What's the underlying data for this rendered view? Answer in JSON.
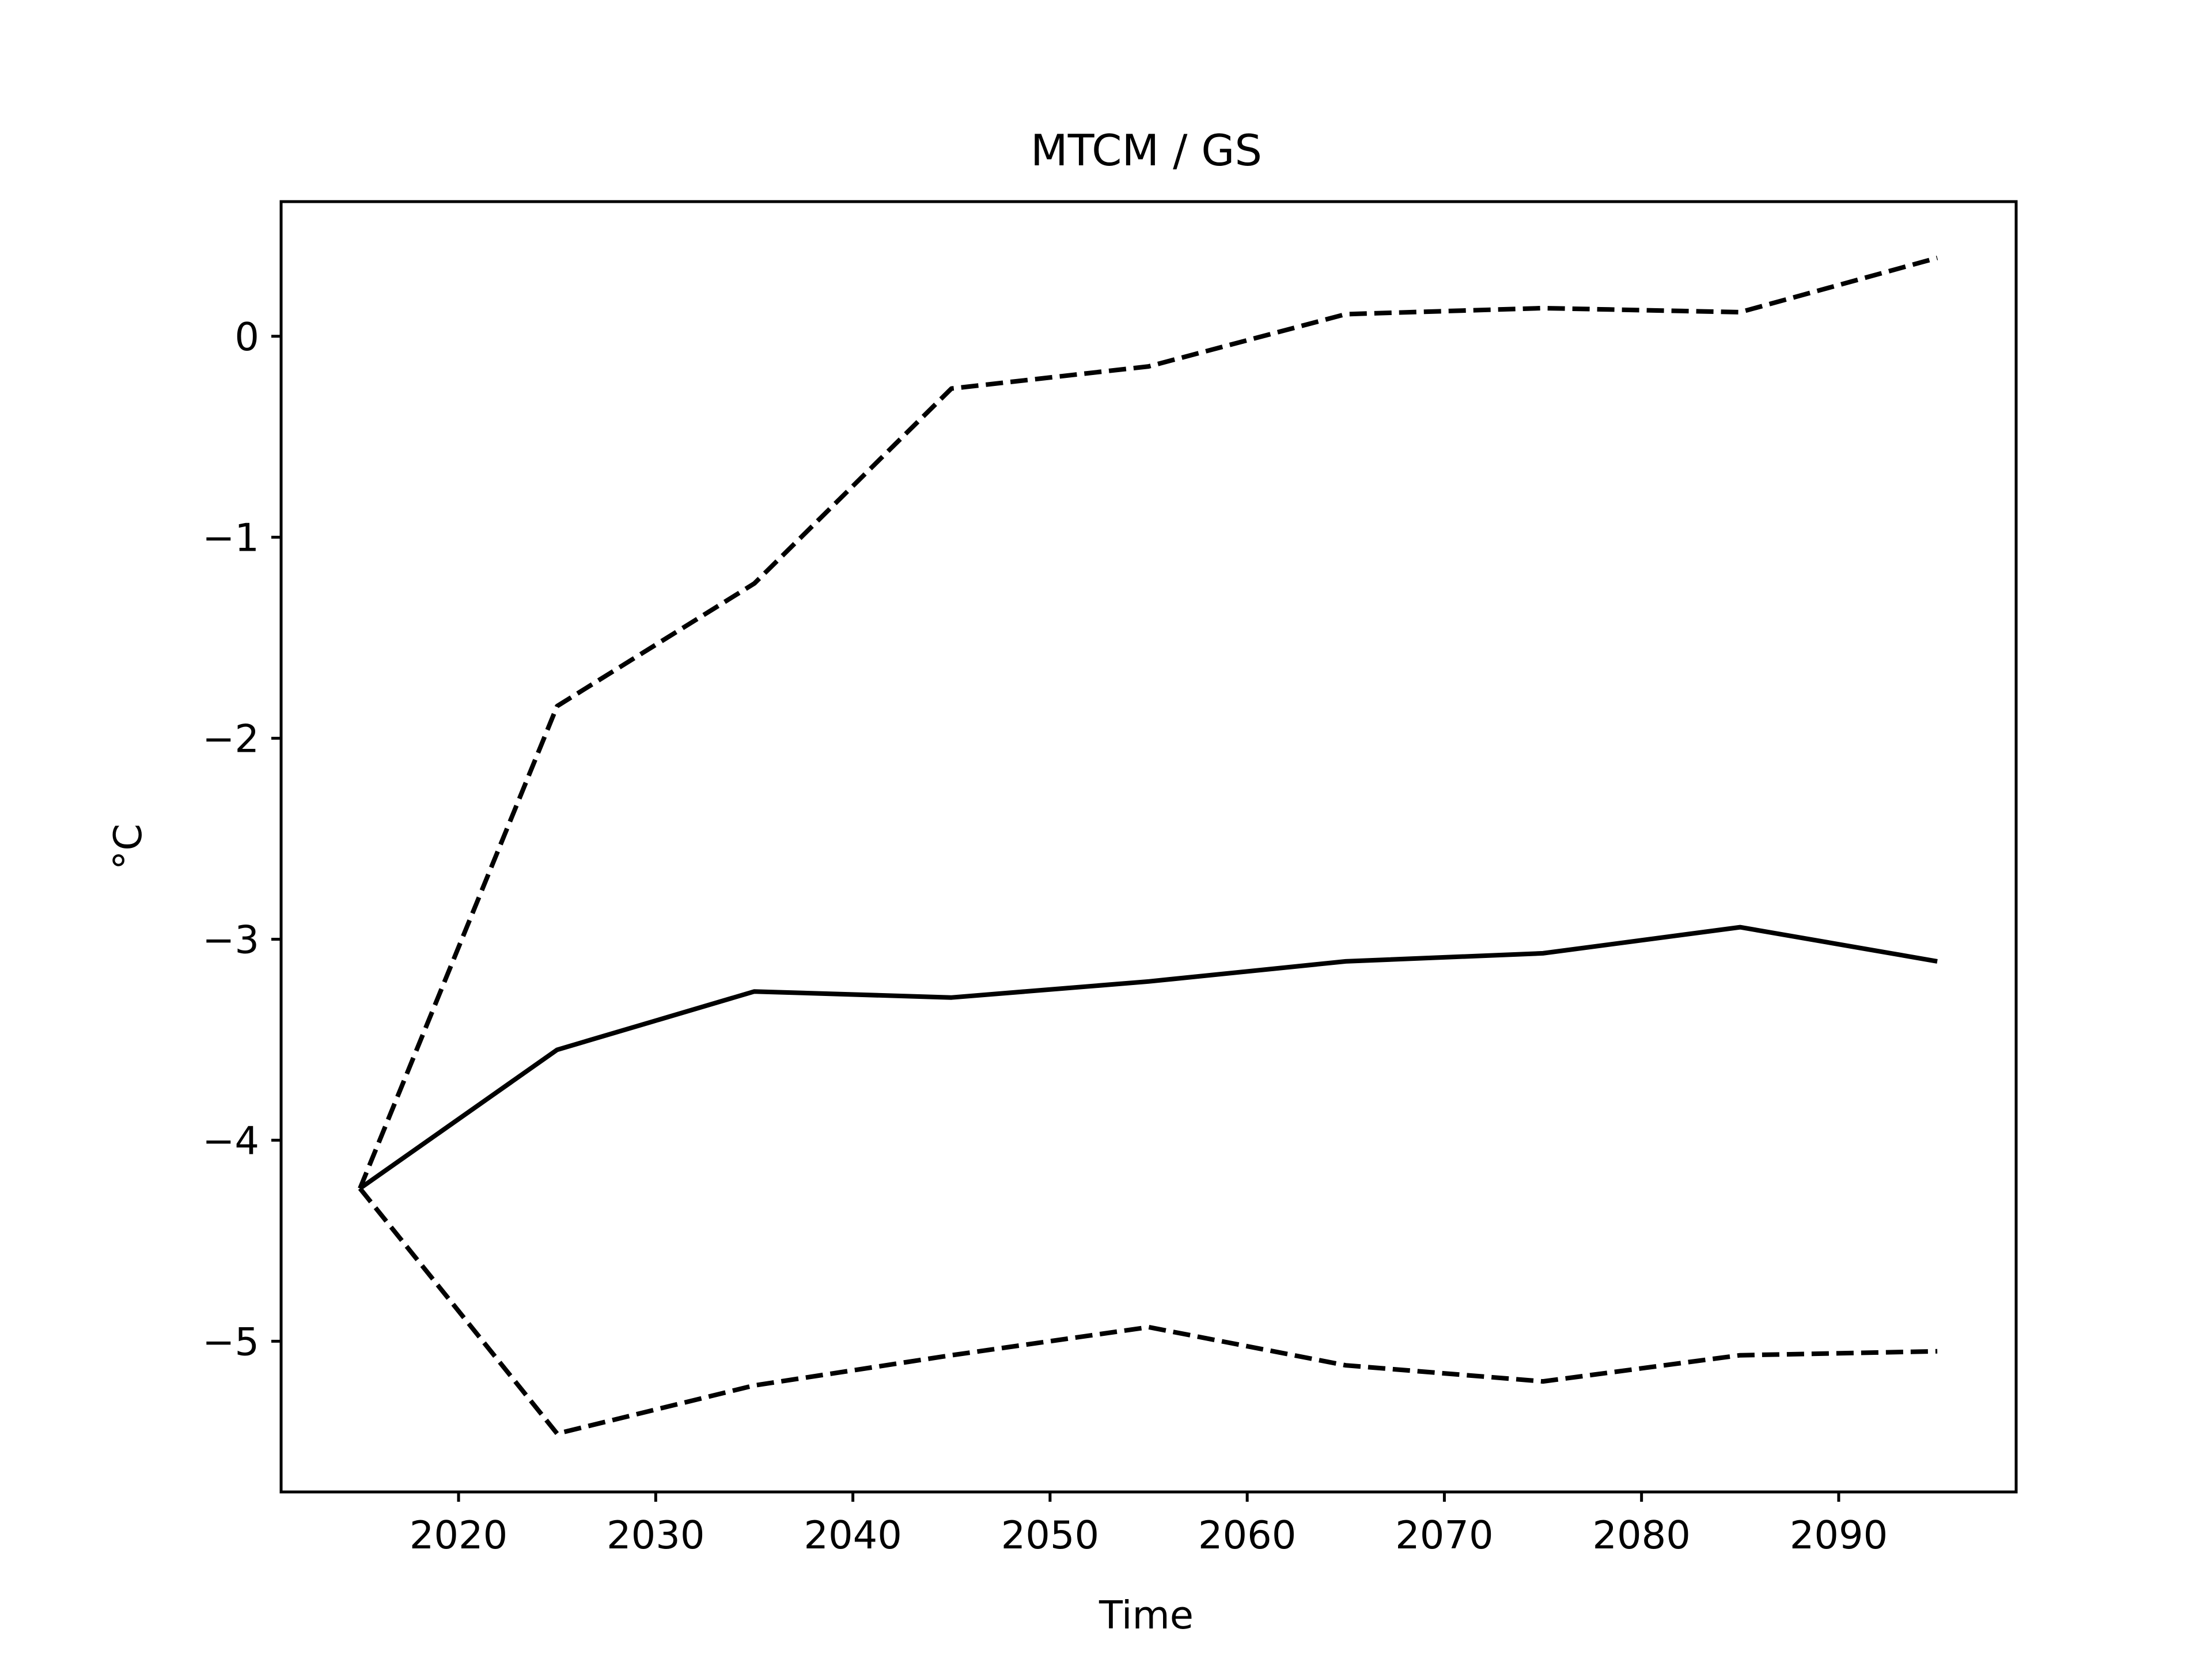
{
  "chart_data": {
    "type": "line",
    "title": "MTCM / GS",
    "xlabel": "Time",
    "ylabel": "°C",
    "xlim": [
      2011,
      2099
    ],
    "ylim": [
      -5.75,
      0.67
    ],
    "x_ticks": [
      2020,
      2030,
      2040,
      2050,
      2060,
      2070,
      2080,
      2090
    ],
    "x_tick_labels": [
      "2020",
      "2030",
      "2040",
      "2050",
      "2060",
      "2070",
      "2080",
      "2090"
    ],
    "y_ticks": [
      0,
      -1,
      -2,
      -3,
      -4,
      -5
    ],
    "y_tick_labels": [
      "0",
      "−1",
      "−2",
      "−3",
      "−4",
      "−5"
    ],
    "grid": false,
    "x": [
      2015,
      2025,
      2035,
      2045,
      2055,
      2065,
      2075,
      2085,
      2095
    ],
    "series": [
      {
        "values": [
          -4.24,
          -1.84,
          -1.23,
          -0.26,
          -0.15,
          0.11,
          0.14,
          0.12,
          0.39
        ],
        "color": "#000000",
        "style": "dashed"
      },
      {
        "values": [
          -4.24,
          -3.55,
          -3.26,
          -3.29,
          -3.21,
          -3.11,
          -3.07,
          -2.94,
          -3.11
        ],
        "color": "#000000",
        "style": "solid"
      },
      {
        "values": [
          -4.24,
          -5.46,
          -5.22,
          -5.07,
          -4.93,
          -5.12,
          -5.2,
          -5.07,
          -5.05
        ],
        "color": "#000000",
        "style": "dashed"
      }
    ]
  }
}
